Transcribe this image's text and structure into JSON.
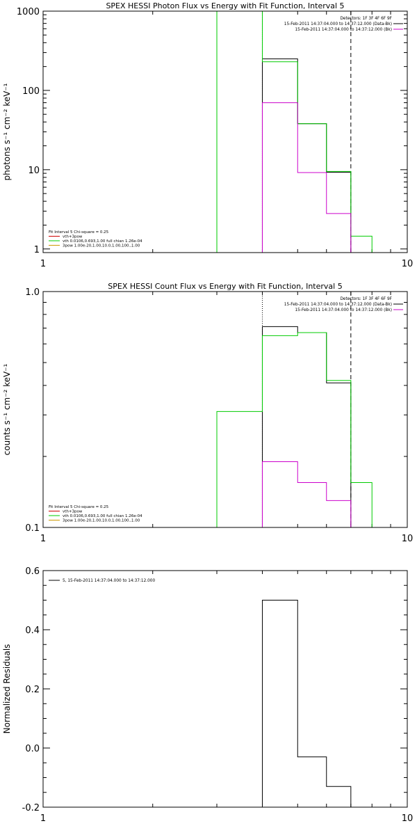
{
  "figure": {
    "panels": [
      {
        "id": "photon",
        "title": "SPEX HESSI Photon Flux vs Energy with Fit Function, Interval 5",
        "ylabel": "photons s⁻¹ cm⁻² keV⁻¹",
        "legend_lines": [
          "Detectors: 1F 3F 4F 6F 9F",
          "15-Feb-2011 14:37:04.000 to 14:37:12.000 (Data-Bk)",
          "15-Feb-2011 14:37:04.000 to 14:37:12.000 (Bk)"
        ],
        "fit_lines": [
          "Fit Interval 5   Chi-square = 0.25",
          "vth+3pow",
          "vth 0.0106,0.693,1.00  full chian 1.26e-04",
          "3pow 1.00e-20,1.00,10.0,1.00,100.,1.00"
        ]
      },
      {
        "id": "count",
        "title": "SPEX HESSI Count Flux vs Energy with Fit Function, Interval 5",
        "ylabel": "counts s⁻¹ cm⁻² keV⁻¹",
        "legend_lines": [
          "Detectors: 1F 3F 4F 6F 9F",
          "15-Feb-2011 14:37:04.000 to 14:37:12.000 (Data-Bk)",
          "15-Feb-2011 14:37:04.000 to 14:37:12.000 (Bk)"
        ],
        "fit_lines": [
          "Fit Interval 5   Chi-square = 0.25",
          "vth+3pow",
          "vth 0.0106,0.693,1.00  full chian 1.26e-04",
          "3pow 1.00e-20,1.00,10.0,1.00,100.,1.00"
        ]
      },
      {
        "id": "residual",
        "title": "",
        "ylabel": "Normalized Residuals",
        "legend_lines": [
          "5, 15-Feb-2011 14:37:04.000 to 14:37:12.000"
        ],
        "fit_lines": []
      }
    ]
  },
  "chart_data": [
    {
      "type": "line",
      "title": "SPEX HESSI Photon Flux vs Energy with Fit Function, Interval 5",
      "xlabel": "",
      "ylabel": "photons s⁻¹ cm⁻² keV⁻¹",
      "xscale": "log",
      "yscale": "log",
      "xlim": [
        1,
        10
      ],
      "ylim": [
        0.9,
        1000
      ],
      "x_ticks": [
        1,
        10
      ],
      "y_ticks": [
        1,
        10,
        100,
        1000
      ],
      "energy_edges": [
        3,
        4,
        5,
        6,
        7,
        8
      ],
      "series": [
        {
          "name": "Data-Bk",
          "color": "#000000",
          "values": [
            null,
            250,
            38,
            9.3,
            null
          ]
        },
        {
          "name": "vth+3pow",
          "color": "#00cc00",
          "values": [
            1000,
            230,
            38,
            9.5,
            1.45
          ]
        },
        {
          "name": "Bk",
          "color": "#cc00cc",
          "values": [
            null,
            70,
            9.2,
            2.8,
            null
          ]
        }
      ],
      "vertical_lines": [
        {
          "x": 3,
          "style": "solid",
          "color": "#00cc00"
        },
        {
          "x": 4,
          "style": "dotted",
          "color": "#000000"
        },
        {
          "x": 7,
          "style": "dashed",
          "color": "#000000"
        }
      ],
      "legend": "top-right"
    },
    {
      "type": "line",
      "title": "SPEX HESSI Count Flux vs Energy with Fit Function, Interval 5",
      "xlabel": "",
      "ylabel": "counts s⁻¹ cm⁻² keV⁻¹",
      "xscale": "log",
      "yscale": "log",
      "xlim": [
        1,
        10
      ],
      "ylim": [
        0.1,
        1.0
      ],
      "x_ticks": [
        1,
        10
      ],
      "y_ticks": [
        0.1,
        1.0
      ],
      "energy_edges": [
        3,
        4,
        5,
        6,
        7,
        8
      ],
      "series": [
        {
          "name": "Data-Bk",
          "color": "#000000",
          "values": [
            null,
            0.71,
            0.67,
            0.41,
            null
          ]
        },
        {
          "name": "vth+3pow",
          "color": "#00cc00",
          "values": [
            0.31,
            0.65,
            0.67,
            0.42,
            0.155
          ]
        },
        {
          "name": "Bk",
          "color": "#cc00cc",
          "values": [
            null,
            0.19,
            0.155,
            0.13,
            null
          ]
        }
      ],
      "vertical_lines": [
        {
          "x": 4,
          "style": "dotted",
          "color": "#000000"
        },
        {
          "x": 7,
          "style": "dashed",
          "color": "#000000"
        }
      ],
      "legend": "top-right"
    },
    {
      "type": "line",
      "title": "",
      "xlabel": "",
      "ylabel": "Normalized Residuals",
      "xscale": "log",
      "yscale": "linear",
      "xlim": [
        1,
        10
      ],
      "ylim": [
        -0.2,
        0.6
      ],
      "x_ticks": [
        1,
        10
      ],
      "y_ticks": [
        -0.2,
        0.0,
        0.2,
        0.4,
        0.6
      ],
      "energy_edges": [
        4,
        5,
        6,
        7
      ],
      "series": [
        {
          "name": "5, 15-Feb-2011 14:37:04.000 to 14:37:12.000",
          "color": "#000000",
          "values": [
            0.5,
            -0.03,
            -0.13
          ]
        }
      ],
      "legend": "top-left"
    }
  ]
}
